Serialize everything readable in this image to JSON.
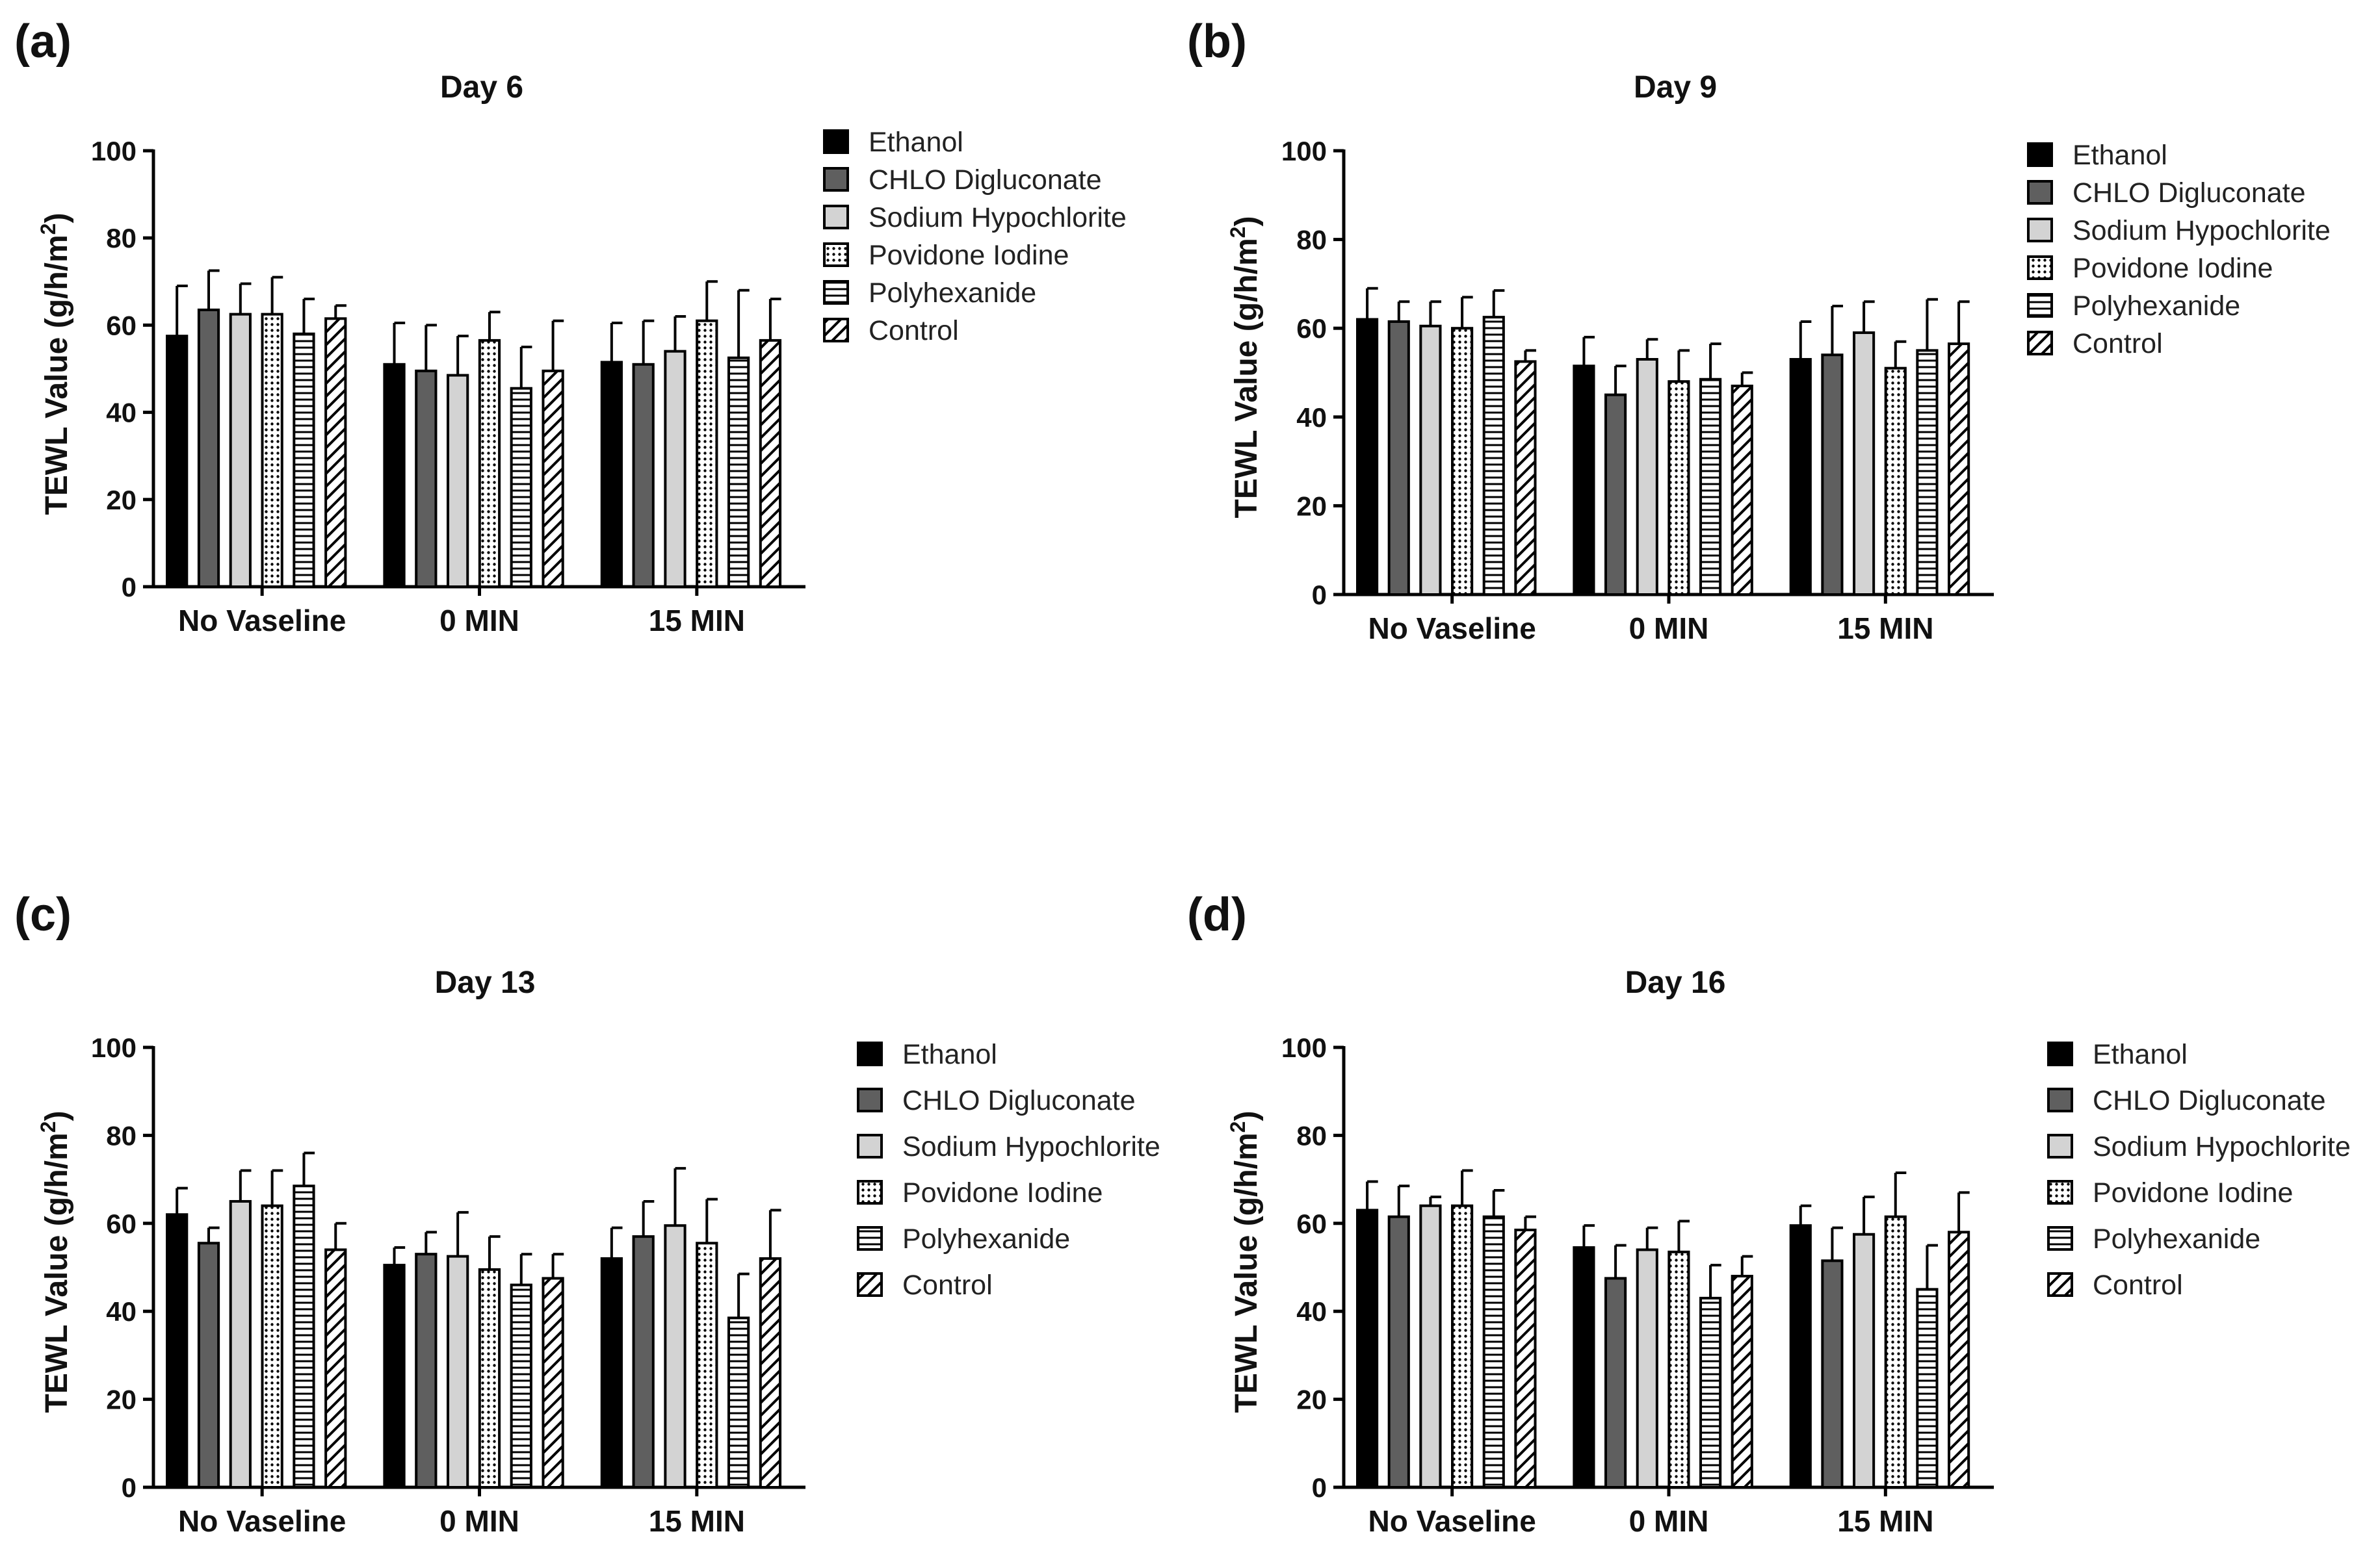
{
  "figure": {
    "ylabel_main": "TEWL Value (g/h/m",
    "ylabel_sup": "2",
    "ylabel_close": ")"
  },
  "legend": {
    "entries": [
      "Ethanol",
      "CHLO Digluconate",
      "Sodium Hypochlorite",
      "Povidone Iodine",
      "Polyhexanide",
      "Control"
    ]
  },
  "series_styles": [
    {
      "name": "Ethanol",
      "fill": "#000000",
      "pattern": "solid"
    },
    {
      "name": "CHLO Digluconate",
      "fill": "#5f5f5f",
      "pattern": "solid"
    },
    {
      "name": "Sodium Hypochlorite",
      "fill": "#d3d3d3",
      "pattern": "solid"
    },
    {
      "name": "Povidone Iodine",
      "fill": "#ffffff",
      "pattern": "dots"
    },
    {
      "name": "Polyhexanide",
      "fill": "#ffffff",
      "pattern": "hlines"
    },
    {
      "name": "Control",
      "fill": "#ffffff",
      "pattern": "diagonal"
    }
  ],
  "chart_data": [
    {
      "panel": "(a)",
      "type": "bar",
      "title": "Day 6",
      "xlabel": "",
      "ylabel": "TEWL Value (g/h/m2)",
      "ylim": [
        0,
        100
      ],
      "yticks": [
        0,
        20,
        40,
        60,
        80,
        100
      ],
      "categories": [
        "No Vaseline",
        "0 MIN",
        "15 MIN"
      ],
      "series": [
        {
          "name": "Ethanol",
          "values": [
            57.5,
            51,
            51.5
          ],
          "errors": [
            11.5,
            9.5,
            9
          ]
        },
        {
          "name": "CHLO Digluconate",
          "values": [
            63.5,
            49.5,
            51
          ],
          "errors": [
            9,
            10.5,
            10
          ]
        },
        {
          "name": "Sodium Hypochlorite",
          "values": [
            62.5,
            48.5,
            54
          ],
          "errors": [
            7,
            9,
            8
          ]
        },
        {
          "name": "Povidone Iodine",
          "values": [
            62.5,
            56.5,
            61
          ],
          "errors": [
            8.5,
            6.5,
            9
          ]
        },
        {
          "name": "Polyhexanide",
          "values": [
            58,
            45.5,
            52.5
          ],
          "errors": [
            8,
            9.5,
            15.5
          ]
        },
        {
          "name": "Control",
          "values": [
            61.5,
            49.5,
            56.5
          ],
          "errors": [
            3,
            11.5,
            9.5
          ]
        }
      ]
    },
    {
      "panel": "(b)",
      "type": "bar",
      "title": "Day 9",
      "xlabel": "",
      "ylabel": "TEWL Value (g/h/m2)",
      "ylim": [
        0,
        100
      ],
      "yticks": [
        0,
        20,
        40,
        60,
        80,
        100
      ],
      "categories": [
        "No Vaseline",
        "0 MIN",
        "15 MIN"
      ],
      "series": [
        {
          "name": "Ethanol",
          "values": [
            62,
            51.5,
            53
          ],
          "errors": [
            7,
            6.5,
            8.5
          ]
        },
        {
          "name": "CHLO Digluconate",
          "values": [
            61.5,
            45,
            54
          ],
          "errors": [
            4.5,
            6.5,
            11
          ]
        },
        {
          "name": "Sodium Hypochlorite",
          "values": [
            60.5,
            53,
            59
          ],
          "errors": [
            5.5,
            4.5,
            7
          ]
        },
        {
          "name": "Povidone Iodine",
          "values": [
            60,
            48,
            51
          ],
          "errors": [
            7,
            7,
            6
          ]
        },
        {
          "name": "Polyhexanide",
          "values": [
            62.5,
            48.5,
            55
          ],
          "errors": [
            6,
            8,
            11.5
          ]
        },
        {
          "name": "Control",
          "values": [
            52.5,
            47,
            56.5
          ],
          "errors": [
            2.5,
            3,
            9.5
          ]
        }
      ]
    },
    {
      "panel": "(c)",
      "type": "bar",
      "title": "Day 13",
      "xlabel": "",
      "ylabel": "TEWL Value (g/h/m2)",
      "ylim": [
        0,
        100
      ],
      "yticks": [
        0,
        20,
        40,
        60,
        80,
        100
      ],
      "categories": [
        "No Vaseline",
        "0 MIN",
        "15 MIN"
      ],
      "series": [
        {
          "name": "Ethanol",
          "values": [
            62,
            50.5,
            52
          ],
          "errors": [
            6,
            4,
            7
          ]
        },
        {
          "name": "CHLO Digluconate",
          "values": [
            55.5,
            53,
            57
          ],
          "errors": [
            3.5,
            5,
            8
          ]
        },
        {
          "name": "Sodium Hypochlorite",
          "values": [
            65,
            52.5,
            59.5
          ],
          "errors": [
            7,
            10,
            13
          ]
        },
        {
          "name": "Povidone Iodine",
          "values": [
            64,
            49.5,
            55.5
          ],
          "errors": [
            8,
            7.5,
            10
          ]
        },
        {
          "name": "Polyhexanide",
          "values": [
            68.5,
            46,
            38.5
          ],
          "errors": [
            7.5,
            7,
            10
          ]
        },
        {
          "name": "Control",
          "values": [
            54,
            47.5,
            52
          ],
          "errors": [
            6,
            5.5,
            11
          ]
        }
      ]
    },
    {
      "panel": "(d)",
      "type": "bar",
      "title": "Day 16",
      "xlabel": "",
      "ylabel": "TEWL Value (g/h/m2)",
      "ylim": [
        0,
        100
      ],
      "yticks": [
        0,
        20,
        40,
        60,
        80,
        100
      ],
      "categories": [
        "No Vaseline",
        "0 MIN",
        "15 MIN"
      ],
      "series": [
        {
          "name": "Ethanol",
          "values": [
            63,
            54.5,
            59.5
          ],
          "errors": [
            6.5,
            5,
            4.5
          ]
        },
        {
          "name": "CHLO Digluconate",
          "values": [
            61.5,
            47.5,
            51.5
          ],
          "errors": [
            7,
            7.5,
            7.5
          ]
        },
        {
          "name": "Sodium Hypochlorite",
          "values": [
            64,
            54,
            57.5
          ],
          "errors": [
            2,
            5,
            8.5
          ]
        },
        {
          "name": "Povidone Iodine",
          "values": [
            64,
            53.5,
            61.5
          ],
          "errors": [
            8,
            7,
            10
          ]
        },
        {
          "name": "Polyhexanide",
          "values": [
            61.5,
            43,
            45
          ],
          "errors": [
            6,
            7.5,
            10
          ]
        },
        {
          "name": "Control",
          "values": [
            58.5,
            48,
            58
          ],
          "errors": [
            3,
            4.5,
            9
          ]
        }
      ]
    }
  ]
}
